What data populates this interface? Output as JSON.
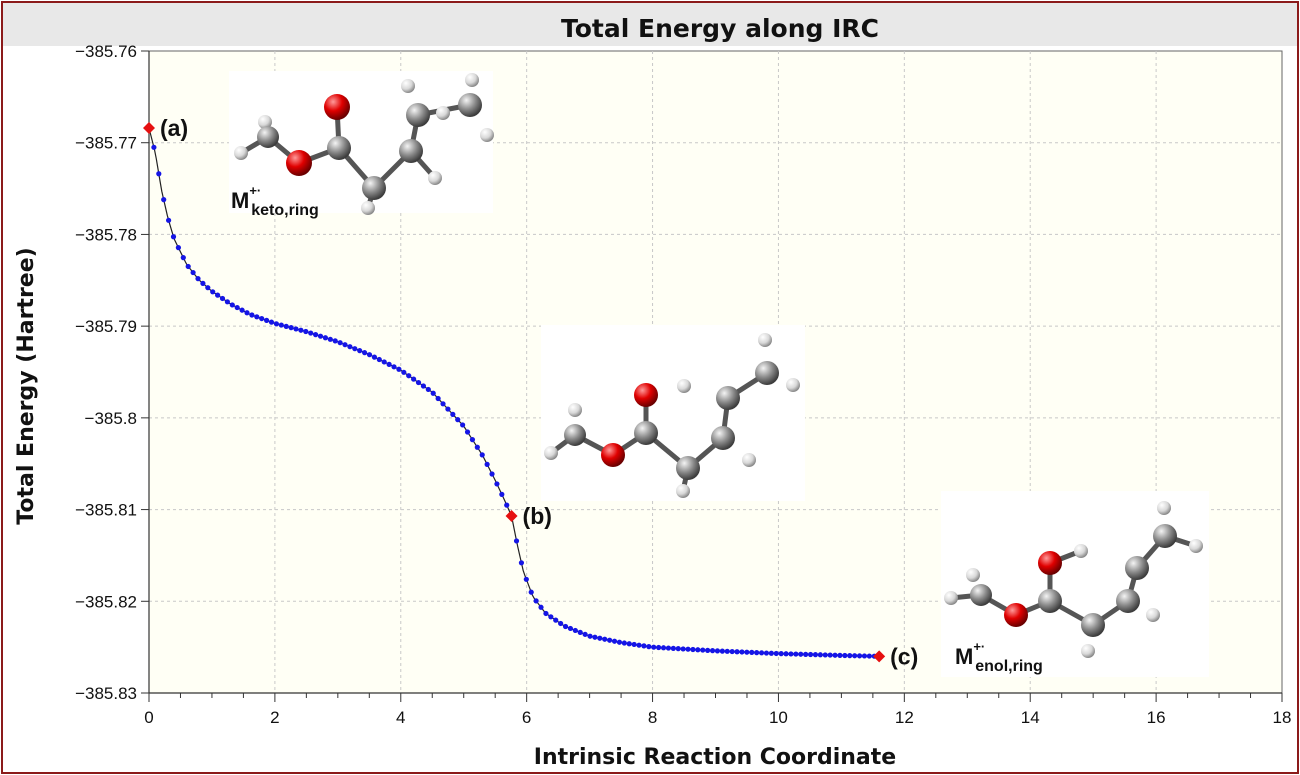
{
  "chart_data": {
    "type": "scatter",
    "title": "Total Energy along IRC",
    "xlabel": "Intrinsic Reaction Coordinate",
    "ylabel": "Total Energy (Hartree)",
    "xlim": [
      0,
      18
    ],
    "ylim": [
      -385.83,
      -385.76
    ],
    "xticks": [
      "0",
      "2",
      "4",
      "6",
      "8",
      "10",
      "12",
      "14",
      "16",
      "18"
    ],
    "yticks": [
      "−385.76",
      "−385.77",
      "−385.78",
      "−385.79",
      "−385.8",
      "−385.81",
      "−385.82",
      "−385.83"
    ],
    "grid": true,
    "series_color": "#1515e6",
    "highlight_color": "#e61010",
    "curve_color": "#222222",
    "profile": [
      [
        0.0,
        -385.7684
      ],
      [
        0.1,
        -385.7711
      ],
      [
        0.2,
        -385.7752
      ],
      [
        0.3,
        -385.7782
      ],
      [
        0.4,
        -385.7805
      ],
      [
        0.6,
        -385.7833
      ],
      [
        0.8,
        -385.785
      ],
      [
        1.0,
        -385.7862
      ],
      [
        1.3,
        -385.7876
      ],
      [
        1.6,
        -385.7887
      ],
      [
        2.0,
        -385.7897
      ],
      [
        2.5,
        -385.7906
      ],
      [
        3.0,
        -385.7917
      ],
      [
        3.5,
        -385.7931
      ],
      [
        4.0,
        -385.7948
      ],
      [
        4.5,
        -385.7972
      ],
      [
        5.0,
        -385.8009
      ],
      [
        5.3,
        -385.8041
      ],
      [
        5.5,
        -385.8068
      ],
      [
        5.65,
        -385.809
      ],
      [
        5.76,
        -385.8107
      ],
      [
        5.85,
        -385.8138
      ],
      [
        5.95,
        -385.8168
      ],
      [
        6.1,
        -385.8195
      ],
      [
        6.3,
        -385.8213
      ],
      [
        6.6,
        -385.8227
      ],
      [
        7.0,
        -385.8238
      ],
      [
        7.5,
        -385.8245
      ],
      [
        8.0,
        -385.825
      ],
      [
        9.0,
        -385.8254
      ],
      [
        10.0,
        -385.8257
      ],
      [
        11.0,
        -385.8259
      ],
      [
        11.6,
        -385.826
      ]
    ],
    "point_count": 150,
    "highlighted_points": [
      {
        "label": "(a)",
        "x": 0.0,
        "y": -385.7684
      },
      {
        "label": "(b)",
        "x": 5.76,
        "y": -385.8107
      },
      {
        "label": "(c)",
        "x": 11.6,
        "y": -385.826
      }
    ],
    "structure_labels": [
      {
        "main": "M",
        "sup": "+·",
        "sub": "keto,ring"
      },
      {
        "main": "M",
        "sup": "+·",
        "sub": "enol,ring"
      }
    ]
  }
}
